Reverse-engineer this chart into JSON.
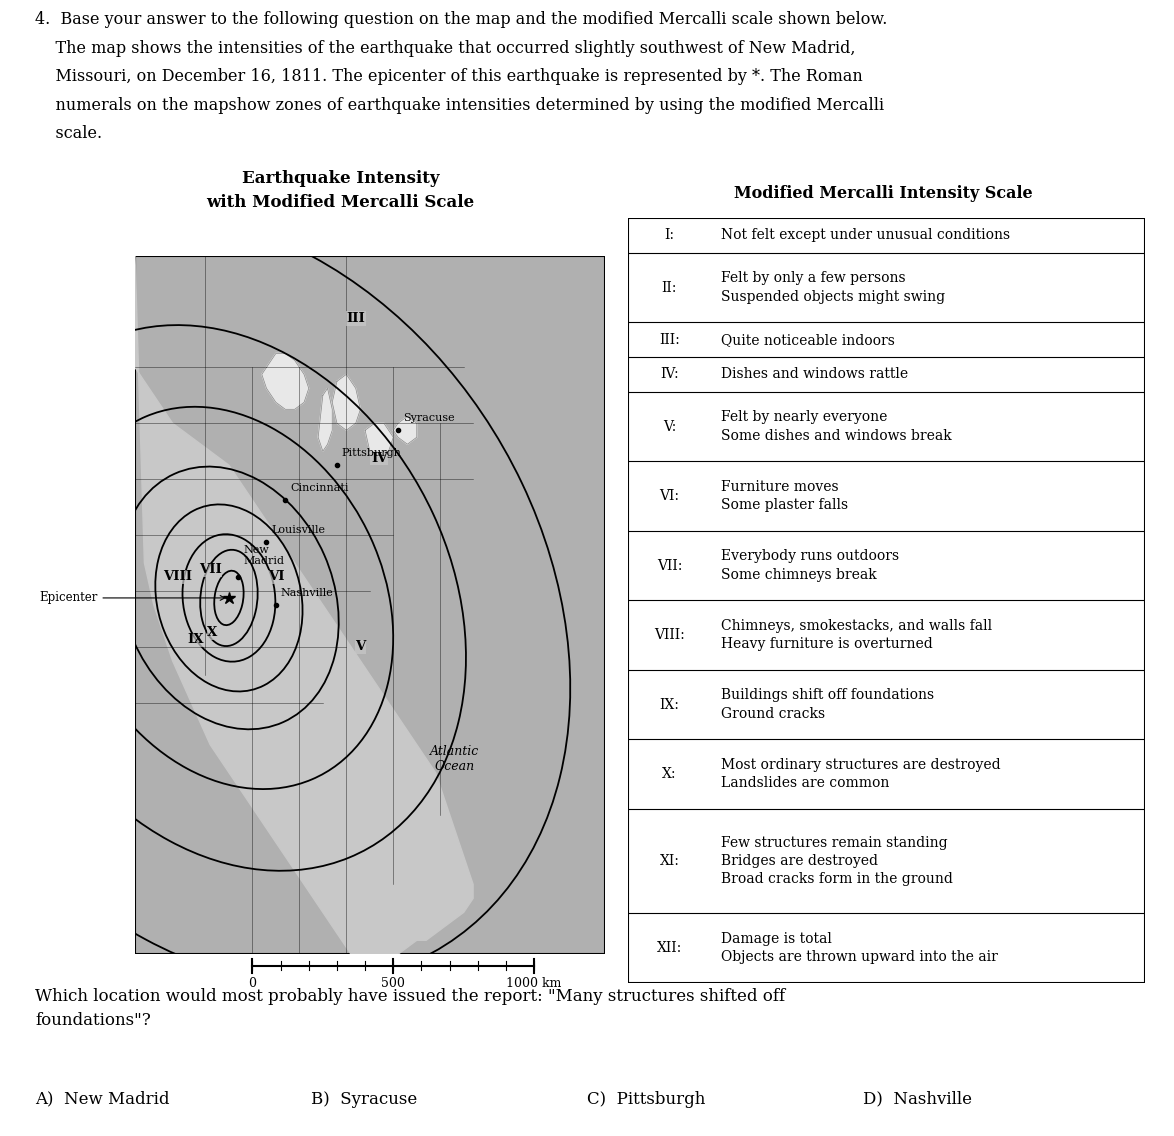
{
  "map_title_line1": "Earthquake Intensity",
  "map_title_line2": "with Modified Mercalli Scale",
  "scale_title": "Modified Mercalli Intensity Scale",
  "scale_entries": [
    {
      "numeral": "I:",
      "text": "Not felt except under unusual conditions",
      "lines": 1
    },
    {
      "numeral": "II:",
      "text": "Felt by only a few persons\nSuspended objects might swing",
      "lines": 2
    },
    {
      "numeral": "III:",
      "text": "Quite noticeable indoors",
      "lines": 1
    },
    {
      "numeral": "IV:",
      "text": "Dishes and windows rattle",
      "lines": 1
    },
    {
      "numeral": "V:",
      "text": "Felt by nearly everyone\nSome dishes and windows break",
      "lines": 2
    },
    {
      "numeral": "VI:",
      "text": "Furniture moves\nSome plaster falls",
      "lines": 2
    },
    {
      "numeral": "VII:",
      "text": "Everybody runs outdoors\nSome chimneys break",
      "lines": 2
    },
    {
      "numeral": "VIII:",
      "text": "Chimneys, smokestacks, and walls fall\nHeavy furniture is overturned",
      "lines": 2
    },
    {
      "numeral": "IX:",
      "text": "Buildings shift off foundations\nGround cracks",
      "lines": 2
    },
    {
      "numeral": "X:",
      "text": "Most ordinary structures are destroyed\nLandslides are common",
      "lines": 2
    },
    {
      "numeral": "XI:",
      "text": "Few structures remain standing\nBridges are destroyed\nBroad cracks form in the ground",
      "lines": 3
    },
    {
      "numeral": "XII:",
      "text": "Damage is total\nObjects are thrown upward into the air",
      "lines": 2
    }
  ],
  "intro_lines": [
    "4.  Base your answer to the following question on the map and the modified Mercalli scale shown below.",
    "    The map shows the intensities of the earthquake that occurred slightly southwest of New Madrid,",
    "    Missouri, on December 16, 1811. The epicenter of this earthquake is represented by *. The Roman",
    "    numerals on the mapshow zones of earthquake intensities determined by using the modified Mercalli",
    "    scale."
  ],
  "question_line1": "Which location would most probably have issued the report: \"Many structures shifted off",
  "question_line2": "foundations\"?",
  "answer_A": "A)  New Madrid",
  "answer_B": "B)  Syracuse",
  "answer_C": "C)  Pittsburgh",
  "answer_D": "D)  Nashville",
  "land_color": "#c8c8c8",
  "water_color": "#b0b0b0",
  "lake_color": "#e8e8e8",
  "bg_color": "#ffffff"
}
